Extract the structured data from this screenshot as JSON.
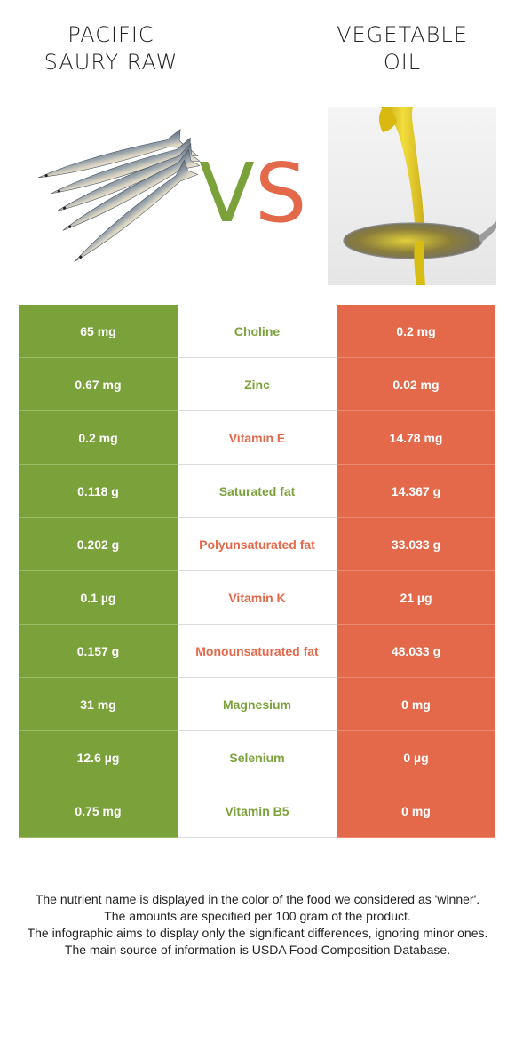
{
  "left_title": [
    "PACIFIC",
    "SAURY RAW"
  ],
  "right_title": [
    "VEGETABLE",
    "OIL"
  ],
  "vs": {
    "v": "V",
    "s": "S"
  },
  "colors": {
    "green": "#7ba23a",
    "orange": "#e4694b"
  },
  "rows": [
    {
      "left": "65 mg",
      "name": "Choline",
      "right": "0.2 mg",
      "winner": "green"
    },
    {
      "left": "0.67 mg",
      "name": "Zinc",
      "right": "0.02 mg",
      "winner": "green"
    },
    {
      "left": "0.2 mg",
      "name": "Vitamin E",
      "right": "14.78 mg",
      "winner": "orange"
    },
    {
      "left": "0.118 g",
      "name": "Saturated fat",
      "right": "14.367 g",
      "winner": "green"
    },
    {
      "left": "0.202 g",
      "name": "Polyunsaturated fat",
      "right": "33.033 g",
      "winner": "orange"
    },
    {
      "left": "0.1 µg",
      "name": "Vitamin K",
      "right": "21 µg",
      "winner": "orange"
    },
    {
      "left": "0.157 g",
      "name": "Monounsaturated fat",
      "right": "48.033 g",
      "winner": "orange"
    },
    {
      "left": "31 mg",
      "name": "Magnesium",
      "right": "0 mg",
      "winner": "green"
    },
    {
      "left": "12.6 µg",
      "name": "Selenium",
      "right": "0 µg",
      "winner": "green"
    },
    {
      "left": "0.75 mg",
      "name": "Vitamin B5",
      "right": "0 mg",
      "winner": "green"
    }
  ],
  "footer": [
    "The nutrient name is displayed in the color of the food we considered as 'winner'.",
    "The amounts are specified per 100 gram of the product.",
    "The infographic aims to display only the significant differences, ignoring minor ones.",
    "The main source of information is USDA Food Composition Database."
  ]
}
